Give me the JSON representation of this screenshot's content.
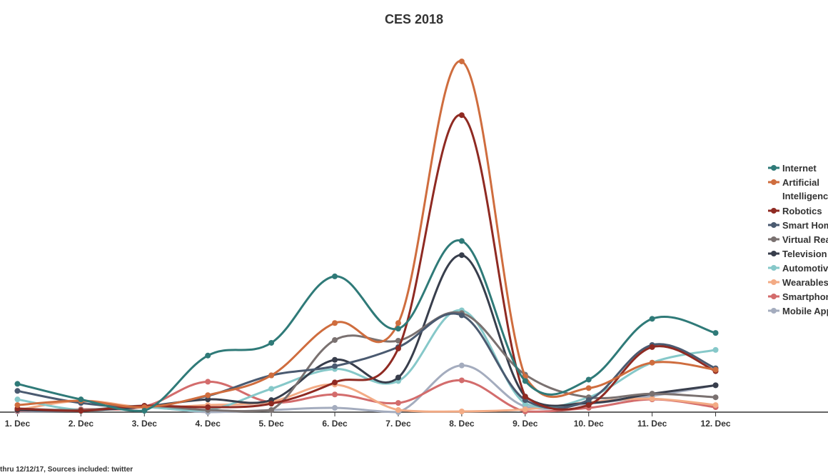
{
  "chart_data": {
    "type": "line",
    "title": "CES 2018",
    "footer": "thru 12/12/17, Sources included: twitter",
    "categories": [
      "1. Dec",
      "2. Dec",
      "3. Dec",
      "4. Dec",
      "5. Dec",
      "6. Dec",
      "7. Dec",
      "8. Dec",
      "9. Dec",
      "10. Dec",
      "11. Dec",
      "12. Dec"
    ],
    "ylim": [
      0,
      500
    ],
    "grid": false,
    "legend_position": "right",
    "series": [
      {
        "name": "Internet",
        "color": "#2f7a78",
        "values": [
          40,
          18,
          2,
          80,
          98,
          192,
          118,
          242,
          44,
          46,
          132,
          112
        ]
      },
      {
        "name": "Artificial Intelligence",
        "color": "#cf6d3e",
        "values": [
          10,
          16,
          7,
          24,
          52,
          126,
          126,
          496,
          50,
          34,
          70,
          60
        ]
      },
      {
        "name": "Robotics",
        "color": "#8f2a22",
        "values": [
          5,
          2,
          9,
          7,
          12,
          42,
          90,
          420,
          22,
          10,
          92,
          58
        ]
      },
      {
        "name": "Smart Home",
        "color": "#4a5a70",
        "values": [
          30,
          13,
          8,
          23,
          52,
          65,
          92,
          137,
          17,
          17,
          95,
          62
        ]
      },
      {
        "name": "Virtual Reality",
        "color": "#7a7170",
        "values": [
          5,
          3,
          9,
          3,
          3,
          102,
          101,
          140,
          53,
          21,
          26,
          21
        ]
      },
      {
        "name": "Television",
        "color": "#383e4c",
        "values": [
          3,
          2,
          8,
          18,
          17,
          74,
          49,
          222,
          22,
          13,
          26,
          38
        ]
      },
      {
        "name": "Automotive",
        "color": "#86c8c9",
        "values": [
          18,
          3,
          7,
          3,
          33,
          61,
          44,
          144,
          12,
          21,
          70,
          88
        ]
      },
      {
        "name": "Wearables",
        "color": "#f3ab85",
        "values": [
          3,
          16,
          7,
          10,
          15,
          39,
          3,
          1,
          4,
          14,
          19,
          10
        ]
      },
      {
        "name": "Smartphones",
        "color": "#d36c6c",
        "values": [
          2,
          4,
          8,
          43,
          14,
          25,
          13,
          45,
          1,
          6,
          18,
          7
        ]
      },
      {
        "name": "Mobile Apps",
        "color": "#a4acbe",
        "values": [
          1,
          2,
          7,
          0,
          3,
          6,
          0,
          66,
          8,
          12,
          23,
          38
        ]
      }
    ]
  }
}
